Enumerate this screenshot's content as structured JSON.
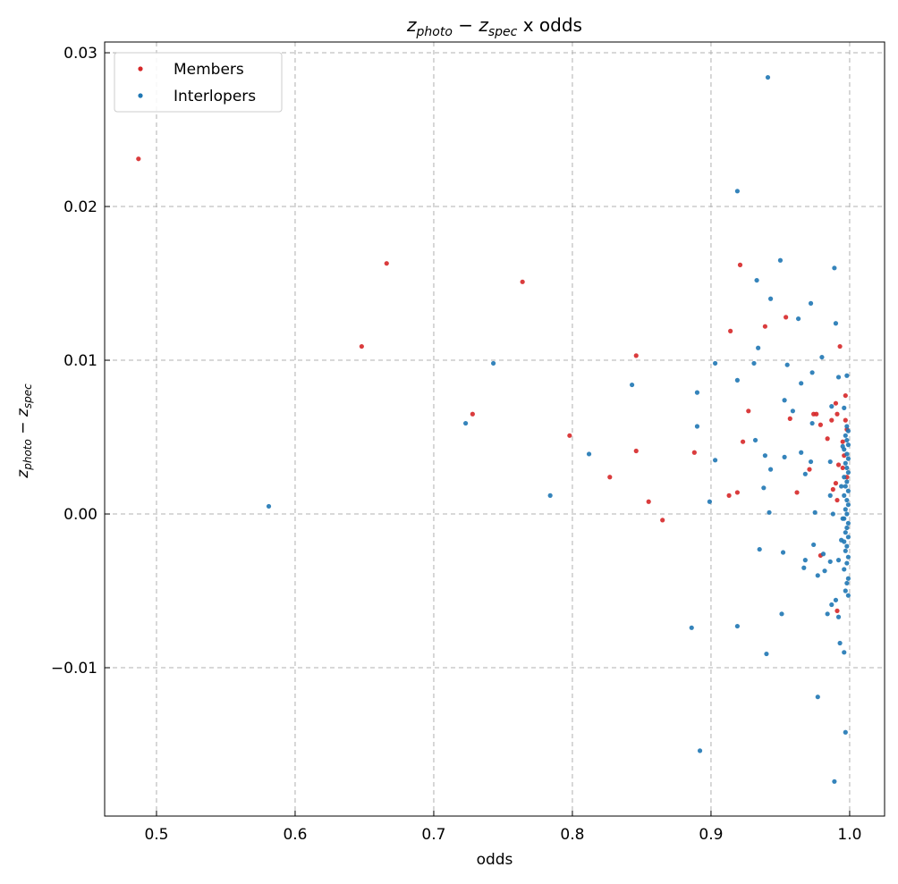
{
  "chart_data": {
    "type": "scatter",
    "title": {
      "base1": "z",
      "sub1": "photo",
      "mid": " − ",
      "base2": "z",
      "sub2": "spec",
      "rest": " x odds"
    },
    "xlabel": "odds",
    "ylabel": {
      "base1": "z",
      "sub1": "photo",
      "mid": " − ",
      "base2": "z",
      "sub2": "spec"
    },
    "xlim": [
      0.4626,
      1.0252
    ],
    "ylim": [
      -0.01965,
      0.0307
    ],
    "xticks": [
      0.5,
      0.6,
      0.7,
      0.8,
      0.9,
      1.0
    ],
    "xtick_labels": [
      "0.5",
      "0.6",
      "0.7",
      "0.8",
      "0.9",
      "1.0"
    ],
    "yticks": [
      -0.01,
      0.0,
      0.01,
      0.02,
      0.03
    ],
    "ytick_labels": [
      "−0.01",
      "0.00",
      "0.01",
      "0.02",
      "0.03"
    ],
    "grid": true,
    "legend_position": "top-left",
    "series": [
      {
        "name": "Members",
        "color": "#d62728",
        "points": [
          [
            0.487,
            0.0231
          ],
          [
            0.648,
            0.0109
          ],
          [
            0.666,
            0.0163
          ],
          [
            0.764,
            0.0151
          ],
          [
            0.728,
            0.0065
          ],
          [
            0.798,
            0.0051
          ],
          [
            0.827,
            0.0024
          ],
          [
            0.846,
            0.0103
          ],
          [
            0.846,
            0.0041
          ],
          [
            0.855,
            0.0008
          ],
          [
            0.865,
            -0.0004
          ],
          [
            0.888,
            0.004
          ],
          [
            0.921,
            0.0162
          ],
          [
            0.914,
            0.0119
          ],
          [
            0.927,
            0.0067
          ],
          [
            0.923,
            0.0047
          ],
          [
            0.919,
            0.0014
          ],
          [
            0.913,
            0.0012
          ],
          [
            0.939,
            0.0122
          ],
          [
            0.954,
            0.0128
          ],
          [
            0.957,
            0.0062
          ],
          [
            0.962,
            0.0014
          ],
          [
            0.974,
            0.0065
          ],
          [
            0.976,
            0.0065
          ],
          [
            0.971,
            0.0029
          ],
          [
            0.979,
            0.0058
          ],
          [
            0.984,
            0.0049
          ],
          [
            0.987,
            0.0061
          ],
          [
            0.993,
            0.0109
          ],
          [
            0.991,
            0.0065
          ],
          [
            0.99,
            0.0072
          ],
          [
            0.992,
            0.0032
          ],
          [
            0.99,
            0.002
          ],
          [
            0.988,
            0.0016
          ],
          [
            0.991,
            0.0009
          ],
          [
            0.995,
            0.0047
          ],
          [
            0.997,
            0.0077
          ],
          [
            0.997,
            0.0061
          ],
          [
            0.996,
            0.0038
          ],
          [
            0.979,
            -0.0027
          ],
          [
            0.991,
            -0.0063
          ],
          [
            0.998,
            0.0024
          ],
          [
            0.995,
            0.003
          ],
          [
            0.998,
            0.0055
          ]
        ]
      },
      {
        "name": "Interlopers",
        "color": "#1f77b4",
        "points": [
          [
            0.581,
            0.0005
          ],
          [
            0.743,
            0.0098
          ],
          [
            0.723,
            0.0059
          ],
          [
            0.812,
            0.0039
          ],
          [
            0.784,
            0.0012
          ],
          [
            0.843,
            0.0084
          ],
          [
            0.941,
            0.0284
          ],
          [
            0.919,
            0.021
          ],
          [
            0.95,
            0.0165
          ],
          [
            0.933,
            0.0152
          ],
          [
            0.943,
            0.014
          ],
          [
            0.963,
            0.0127
          ],
          [
            0.972,
            0.0137
          ],
          [
            0.989,
            0.016
          ],
          [
            0.99,
            0.0124
          ],
          [
            0.934,
            0.0108
          ],
          [
            0.98,
            0.0102
          ],
          [
            0.903,
            0.0098
          ],
          [
            0.931,
            0.0098
          ],
          [
            0.955,
            0.0097
          ],
          [
            0.973,
            0.0092
          ],
          [
            0.992,
            0.0089
          ],
          [
            0.998,
            0.009
          ],
          [
            0.919,
            0.0087
          ],
          [
            0.89,
            0.0079
          ],
          [
            0.965,
            0.0085
          ],
          [
            0.953,
            0.0074
          ],
          [
            0.959,
            0.0067
          ],
          [
            0.987,
            0.007
          ],
          [
            0.996,
            0.0069
          ],
          [
            0.89,
            0.0057
          ],
          [
            0.973,
            0.0059
          ],
          [
            0.932,
            0.0048
          ],
          [
            0.939,
            0.0038
          ],
          [
            0.953,
            0.0037
          ],
          [
            0.903,
            0.0035
          ],
          [
            0.972,
            0.0034
          ],
          [
            0.986,
            0.0034
          ],
          [
            0.943,
            0.0029
          ],
          [
            0.965,
            0.004
          ],
          [
            0.968,
            0.0026
          ],
          [
            0.938,
            0.0017
          ],
          [
            0.986,
            0.0012
          ],
          [
            0.899,
            0.0008
          ],
          [
            0.942,
            0.0001
          ],
          [
            0.975,
            0.0001
          ],
          [
            0.988,
            0.0
          ],
          [
            0.935,
            -0.0023
          ],
          [
            0.974,
            -0.002
          ],
          [
            0.952,
            -0.0025
          ],
          [
            0.968,
            -0.003
          ],
          [
            0.967,
            -0.0035
          ],
          [
            0.982,
            -0.0037
          ],
          [
            0.977,
            -0.004
          ],
          [
            0.986,
            -0.0031
          ],
          [
            0.981,
            -0.0026
          ],
          [
            0.992,
            -0.003
          ],
          [
            0.987,
            -0.0059
          ],
          [
            0.99,
            -0.0056
          ],
          [
            0.984,
            -0.0065
          ],
          [
            0.992,
            -0.0067
          ],
          [
            0.951,
            -0.0065
          ],
          [
            0.886,
            -0.0074
          ],
          [
            0.919,
            -0.0073
          ],
          [
            0.993,
            -0.0084
          ],
          [
            0.996,
            -0.009
          ],
          [
            0.94,
            -0.0091
          ],
          [
            0.977,
            -0.0119
          ],
          [
            0.997,
            -0.0142
          ],
          [
            0.892,
            -0.0154
          ],
          [
            0.989,
            -0.0174
          ],
          [
            0.998,
            0.0057
          ],
          [
            0.999,
            0.0054
          ],
          [
            0.997,
            0.0051
          ],
          [
            0.998,
            0.0048
          ],
          [
            0.999,
            0.0045
          ],
          [
            0.996,
            0.0042
          ],
          [
            0.998,
            0.0039
          ],
          [
            0.999,
            0.0036
          ],
          [
            0.997,
            0.0033
          ],
          [
            0.998,
            0.003
          ],
          [
            0.999,
            0.0027
          ],
          [
            0.996,
            0.0024
          ],
          [
            0.998,
            0.0021
          ],
          [
            0.997,
            0.0018
          ],
          [
            0.999,
            0.0015
          ],
          [
            0.996,
            0.0012
          ],
          [
            0.998,
            0.0009
          ],
          [
            0.999,
            0.0006
          ],
          [
            0.997,
            0.0003
          ],
          [
            0.998,
            0.0
          ],
          [
            0.996,
            -0.0003
          ],
          [
            0.999,
            -0.0006
          ],
          [
            0.998,
            -0.0009
          ],
          [
            0.997,
            -0.0012
          ],
          [
            0.999,
            -0.0015
          ],
          [
            0.996,
            -0.0018
          ],
          [
            0.998,
            -0.0021
          ],
          [
            0.997,
            -0.0024
          ],
          [
            0.999,
            -0.0028
          ],
          [
            0.998,
            -0.0032
          ],
          [
            0.996,
            -0.0036
          ],
          [
            0.999,
            -0.0042
          ],
          [
            0.998,
            -0.0045
          ],
          [
            0.997,
            -0.005
          ],
          [
            0.999,
            -0.0053
          ],
          [
            0.995,
            0.0044
          ],
          [
            0.994,
            0.0018
          ],
          [
            0.995,
            -0.0003
          ],
          [
            0.994,
            -0.0017
          ]
        ]
      }
    ]
  }
}
